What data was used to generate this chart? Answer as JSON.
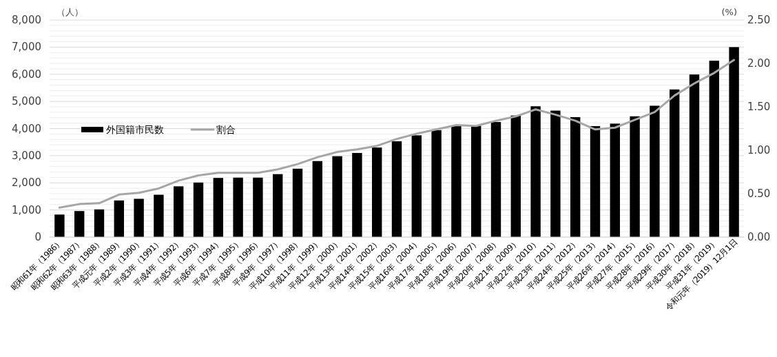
{
  "chart_data": {
    "type": "bar",
    "ylabel": "（人）",
    "y2label": "(%)",
    "categories": [
      "昭和61年（1986）",
      "昭和62年（1987）",
      "昭和63年（1988）",
      "平成元年（1989）",
      "平成2年（1990）",
      "平成3年（1991）",
      "平成4年（1992）",
      "平成5年（1993）",
      "平成6年（1994）",
      "平成7年（1995）",
      "平成8年（1996）",
      "平成9年（1997）",
      "平成10年（1998）",
      "平成11年（1999）",
      "平成12年（2000）",
      "平成13年（2001）",
      "平成14年（2002）",
      "平成15年（2003）",
      "平成16年（2004）",
      "平成17年（2005）",
      "平成18年（2006）",
      "平成19年（2007）",
      "平成20年（2008）",
      "平成21年（2009）",
      "平成22年（2010）",
      "平成23年（2011）",
      "平成24年（2012）",
      "平成25年（2013）",
      "平成26年（2014）",
      "平成27年（2015）",
      "平成28年（2016）",
      "平成29年（2017）",
      "平成30年（2018）",
      "平成31年（2019）",
      "令和元年（2019）12月1日"
    ],
    "series": [
      {
        "name": "外国籍市民数",
        "color": "#000000",
        "values": [
          830,
          960,
          1020,
          1350,
          1410,
          1560,
          1870,
          2010,
          2180,
          2190,
          2190,
          2320,
          2520,
          2800,
          2980,
          3100,
          3300,
          3530,
          3750,
          3940,
          4100,
          4100,
          4240,
          4480,
          4820,
          4660,
          4420,
          4090,
          4180,
          4450,
          4840,
          5440,
          5990,
          6500,
          7000
        ]
      },
      {
        "name": "割合",
        "type": "line",
        "axis": "y2",
        "color": "#a6a6a6",
        "line_style": "solid",
        "marker": "none",
        "values": [
          0.34,
          0.38,
          0.39,
          0.49,
          0.51,
          0.56,
          0.65,
          0.71,
          0.74,
          0.74,
          0.74,
          0.78,
          0.84,
          0.92,
          0.98,
          1.01,
          1.05,
          1.13,
          1.19,
          1.24,
          1.29,
          1.28,
          1.34,
          1.39,
          1.47,
          1.41,
          1.34,
          1.24,
          1.26,
          1.35,
          1.44,
          1.63,
          1.77,
          1.89,
          2.04
        ]
      }
    ],
    "ylim": [
      0,
      8000
    ],
    "yticks": [
      0,
      {
        "value": 1000,
        "label": "1,000"
      },
      {
        "value": 2000,
        "label": "2,000"
      },
      {
        "value": 3000,
        "label": "3,000"
      },
      {
        "value": 4000,
        "label": "4,000"
      },
      {
        "value": 5000,
        "label": "5,000"
      },
      {
        "value": 6000,
        "label": "6,000"
      },
      {
        "value": 7000,
        "label": "7,000"
      },
      {
        "value": 8000,
        "label": "8,000"
      }
    ],
    "y2lim": [
      0,
      2.5
    ],
    "y2ticks": [
      {
        "value": 0,
        "label": "0.00"
      },
      {
        "value": 0.5,
        "label": "0.50"
      },
      {
        "value": 1,
        "label": "1.00"
      },
      {
        "value": 1.5,
        "label": "1.50"
      },
      {
        "value": 2,
        "label": "2.00"
      },
      {
        "value": 2.5,
        "label": "2.50"
      }
    ],
    "grid": "y",
    "legend": "left"
  }
}
